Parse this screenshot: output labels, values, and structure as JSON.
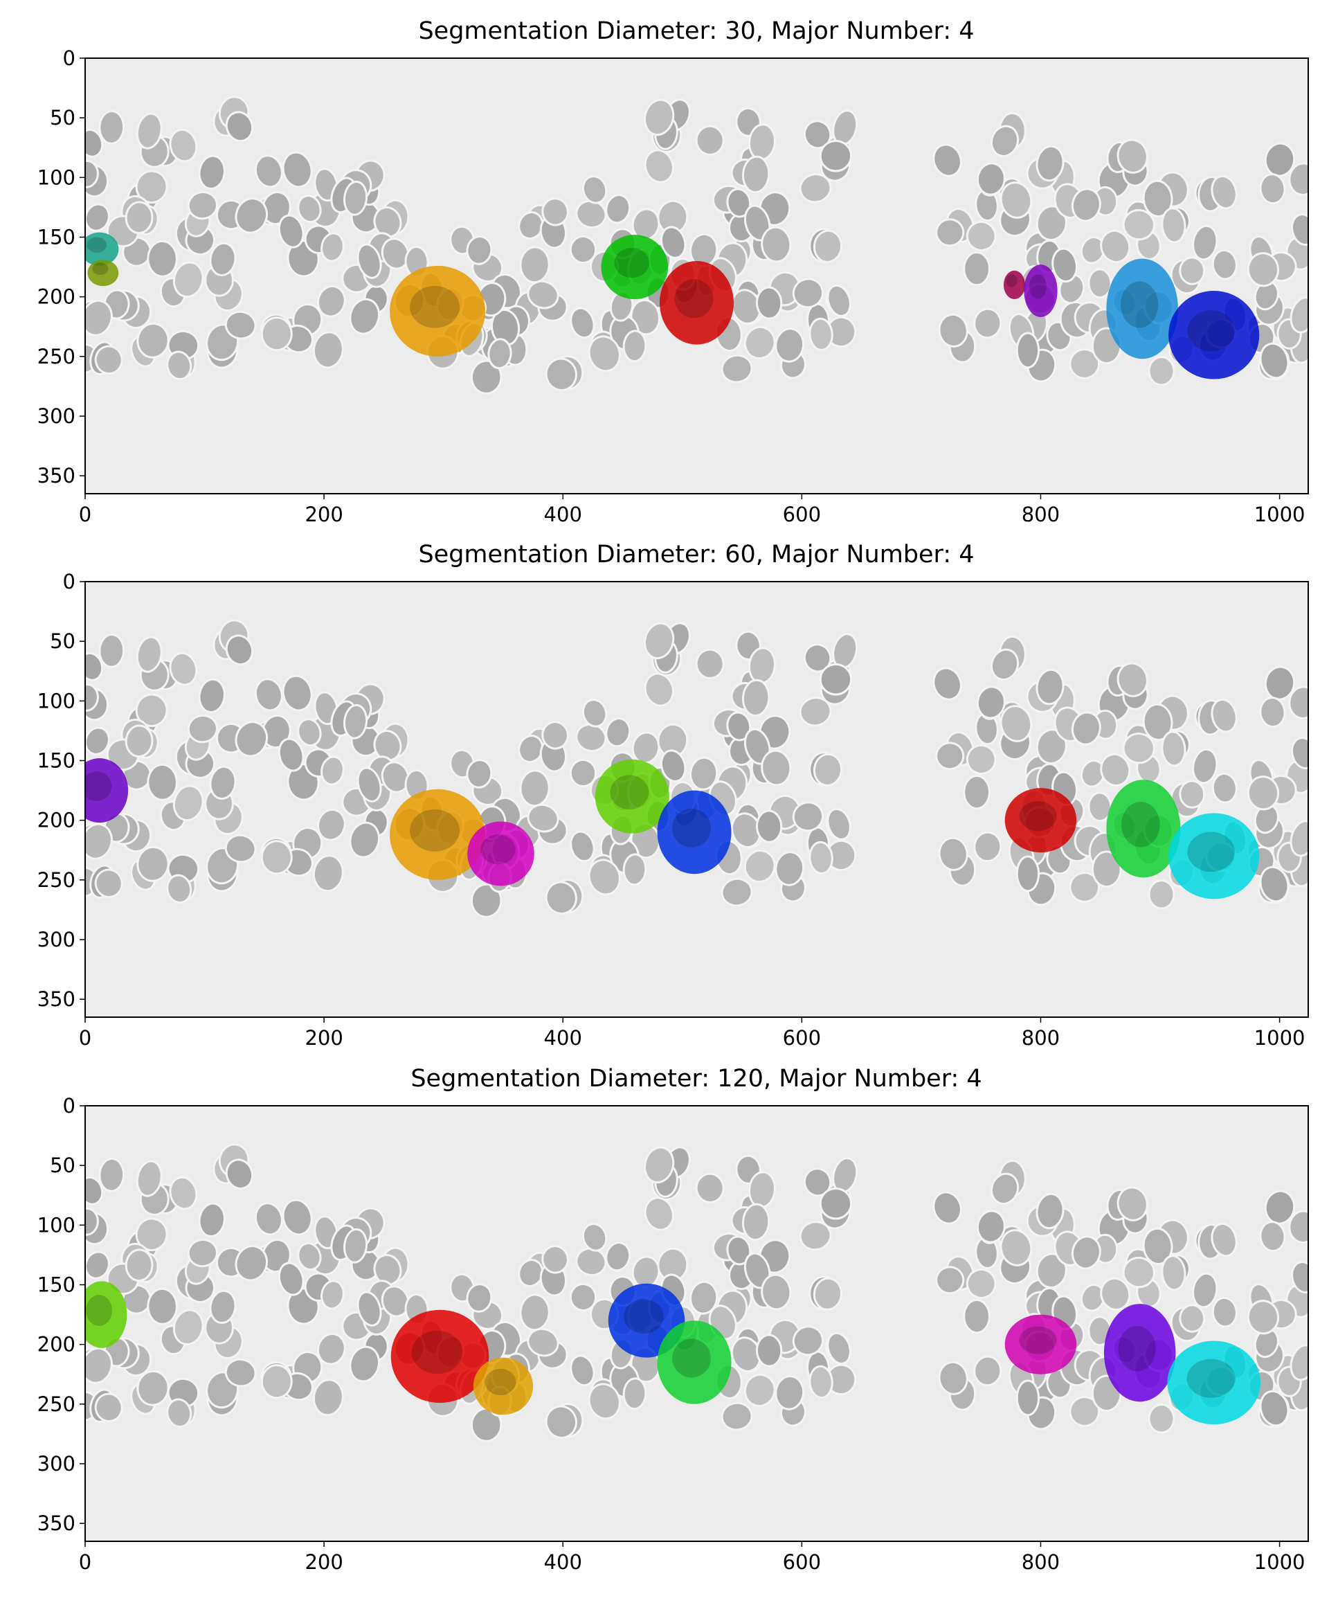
{
  "chart_data": [
    {
      "type": "image",
      "title": "Segmentation Diameter: 30, Major Number: 4",
      "xlim": [
        0,
        1024
      ],
      "ylim": [
        365,
        0
      ],
      "xticks": [
        "0",
        "200",
        "400",
        "600",
        "800",
        "1000"
      ],
      "yticks": [
        "0",
        "50",
        "100",
        "150",
        "200",
        "250",
        "300",
        "350"
      ],
      "masks": [
        {
          "x": 12,
          "y": 160,
          "rx": 16,
          "ry": 14,
          "color": "#17a589"
        },
        {
          "x": 15,
          "y": 180,
          "rx": 13,
          "ry": 11,
          "color": "#7a9a00"
        },
        {
          "x": 295,
          "y": 212,
          "rx": 40,
          "ry": 38,
          "color": "#e69b00"
        },
        {
          "x": 460,
          "y": 175,
          "rx": 28,
          "ry": 27,
          "color": "#00c000"
        },
        {
          "x": 512,
          "y": 205,
          "rx": 31,
          "ry": 35,
          "color": "#d00000"
        },
        {
          "x": 778,
          "y": 190,
          "rx": 9,
          "ry": 12,
          "color": "#a0004a"
        },
        {
          "x": 800,
          "y": 195,
          "rx": 14,
          "ry": 22,
          "color": "#8000c0"
        },
        {
          "x": 885,
          "y": 210,
          "rx": 30,
          "ry": 42,
          "color": "#1890d8"
        },
        {
          "x": 945,
          "y": 232,
          "rx": 38,
          "ry": 37,
          "color": "#0010d0"
        }
      ]
    },
    {
      "type": "image",
      "title": "Segmentation Diameter: 60, Major Number: 4",
      "xlim": [
        0,
        1024
      ],
      "ylim": [
        365,
        0
      ],
      "xticks": [
        "0",
        "200",
        "400",
        "600",
        "800",
        "1000"
      ],
      "yticks": [
        "0",
        "50",
        "100",
        "150",
        "200",
        "250",
        "300",
        "350"
      ],
      "masks": [
        {
          "x": 12,
          "y": 175,
          "rx": 24,
          "ry": 27,
          "color": "#6a00c8"
        },
        {
          "x": 295,
          "y": 212,
          "rx": 40,
          "ry": 38,
          "color": "#e69b00"
        },
        {
          "x": 348,
          "y": 228,
          "rx": 28,
          "ry": 27,
          "color": "#d000c0"
        },
        {
          "x": 458,
          "y": 180,
          "rx": 31,
          "ry": 31,
          "color": "#60d000"
        },
        {
          "x": 510,
          "y": 210,
          "rx": 31,
          "ry": 35,
          "color": "#0030e0"
        },
        {
          "x": 800,
          "y": 200,
          "rx": 30,
          "ry": 27,
          "color": "#d00000"
        },
        {
          "x": 886,
          "y": 207,
          "rx": 31,
          "ry": 41,
          "color": "#10d030"
        },
        {
          "x": 945,
          "y": 230,
          "rx": 38,
          "ry": 36,
          "color": "#00d8e0"
        }
      ]
    },
    {
      "type": "image",
      "title": "Segmentation Diameter: 120, Major Number: 4",
      "xlim": [
        0,
        1024
      ],
      "ylim": [
        365,
        0
      ],
      "xticks": [
        "0",
        "200",
        "400",
        "600",
        "800",
        "1000"
      ],
      "yticks": [
        "0",
        "50",
        "100",
        "150",
        "200",
        "250",
        "300",
        "350"
      ],
      "masks": [
        {
          "x": 14,
          "y": 175,
          "rx": 21,
          "ry": 28,
          "color": "#60d000"
        },
        {
          "x": 297,
          "y": 210,
          "rx": 41,
          "ry": 39,
          "color": "#e00000"
        },
        {
          "x": 350,
          "y": 235,
          "rx": 25,
          "ry": 24,
          "color": "#e0a000"
        },
        {
          "x": 470,
          "y": 180,
          "rx": 32,
          "ry": 31,
          "color": "#0030e0"
        },
        {
          "x": 510,
          "y": 215,
          "rx": 31,
          "ry": 35,
          "color": "#10d030"
        },
        {
          "x": 800,
          "y": 200,
          "rx": 30,
          "ry": 25,
          "color": "#d000b0"
        },
        {
          "x": 883,
          "y": 207,
          "rx": 30,
          "ry": 41,
          "color": "#6a00e0"
        },
        {
          "x": 945,
          "y": 232,
          "rx": 39,
          "ry": 35,
          "color": "#00d8e0"
        }
      ]
    }
  ]
}
